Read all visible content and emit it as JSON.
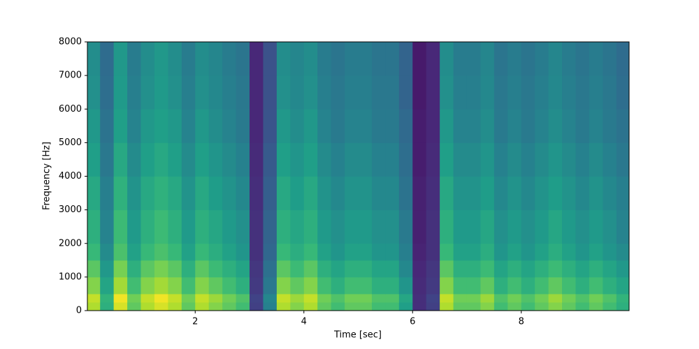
{
  "chart_data": {
    "type": "spectrogram",
    "xlabel": "Time [sec]",
    "ylabel": "Frequency [Hz]",
    "colormap": "viridis",
    "clim": [
      0,
      1
    ],
    "xlim": [
      0.016,
      9.984
    ],
    "xticks": [
      2,
      4,
      6,
      8
    ],
    "ylim": [
      0,
      8000
    ],
    "yticks": [
      0,
      1000,
      2000,
      3000,
      4000,
      5000,
      6000,
      7000,
      8000
    ],
    "xbins": [
      0,
      0.25,
      0.5,
      0.75,
      1,
      1.25,
      1.5,
      1.75,
      2,
      2.25,
      2.5,
      2.75,
      3,
      3.25,
      3.5,
      3.75,
      4,
      4.25,
      4.5,
      4.75,
      5,
      5.25,
      5.5,
      5.75,
      6,
      6.25,
      6.5,
      6.75,
      7,
      7.25,
      7.5,
      7.75,
      8,
      8.25,
      8.5,
      8.75,
      9,
      9.25,
      9.5,
      9.75,
      10
    ],
    "ybins": [
      0,
      250,
      500,
      1000,
      1500,
      2000,
      3000,
      4000,
      5000,
      6000,
      7000,
      8000
    ],
    "values": [
      [
        0.88,
        0.63,
        0.94,
        0.75,
        0.88,
        0.94,
        0.88,
        0.75,
        0.88,
        0.81,
        0.75,
        0.69,
        0.19,
        0.44,
        0.88,
        0.81,
        0.88,
        0.75,
        0.69,
        0.75,
        0.75,
        0.69,
        0.69,
        0.56,
        0.13,
        0.19,
        0.88,
        0.75,
        0.75,
        0.81,
        0.69,
        0.75,
        0.69,
        0.75,
        0.81,
        0.75,
        0.69,
        0.75,
        0.69,
        0.63
      ],
      [
        0.91,
        0.65,
        0.98,
        0.78,
        0.91,
        0.98,
        0.91,
        0.78,
        0.91,
        0.85,
        0.78,
        0.72,
        0.2,
        0.46,
        0.91,
        0.85,
        0.91,
        0.78,
        0.72,
        0.78,
        0.78,
        0.72,
        0.72,
        0.59,
        0.13,
        0.2,
        0.91,
        0.78,
        0.78,
        0.85,
        0.72,
        0.78,
        0.72,
        0.78,
        0.85,
        0.78,
        0.72,
        0.78,
        0.72,
        0.65
      ],
      [
        0.81,
        0.58,
        0.86,
        0.69,
        0.81,
        0.86,
        0.81,
        0.69,
        0.81,
        0.75,
        0.69,
        0.63,
        0.17,
        0.4,
        0.81,
        0.75,
        0.81,
        0.69,
        0.63,
        0.69,
        0.69,
        0.63,
        0.63,
        0.52,
        0.12,
        0.17,
        0.81,
        0.69,
        0.69,
        0.75,
        0.63,
        0.69,
        0.63,
        0.69,
        0.75,
        0.69,
        0.63,
        0.69,
        0.63,
        0.58
      ],
      [
        0.74,
        0.53,
        0.79,
        0.63,
        0.74,
        0.79,
        0.74,
        0.63,
        0.74,
        0.68,
        0.63,
        0.58,
        0.16,
        0.37,
        0.74,
        0.68,
        0.74,
        0.63,
        0.58,
        0.63,
        0.63,
        0.58,
        0.58,
        0.47,
        0.11,
        0.16,
        0.74,
        0.63,
        0.63,
        0.68,
        0.58,
        0.63,
        0.58,
        0.63,
        0.68,
        0.63,
        0.58,
        0.63,
        0.58,
        0.53
      ],
      [
        0.67,
        0.48,
        0.71,
        0.57,
        0.67,
        0.71,
        0.67,
        0.57,
        0.67,
        0.62,
        0.57,
        0.52,
        0.14,
        0.33,
        0.67,
        0.62,
        0.67,
        0.57,
        0.52,
        0.57,
        0.57,
        0.52,
        0.52,
        0.43,
        0.1,
        0.14,
        0.67,
        0.57,
        0.57,
        0.62,
        0.52,
        0.57,
        0.52,
        0.57,
        0.62,
        0.57,
        0.52,
        0.57,
        0.52,
        0.48
      ],
      [
        0.63,
        0.45,
        0.68,
        0.54,
        0.63,
        0.68,
        0.63,
        0.54,
        0.63,
        0.59,
        0.54,
        0.5,
        0.14,
        0.32,
        0.63,
        0.59,
        0.63,
        0.54,
        0.5,
        0.54,
        0.54,
        0.5,
        0.5,
        0.41,
        0.09,
        0.14,
        0.63,
        0.54,
        0.54,
        0.59,
        0.5,
        0.54,
        0.5,
        0.54,
        0.59,
        0.54,
        0.5,
        0.54,
        0.5,
        0.45
      ],
      [
        0.6,
        0.43,
        0.64,
        0.51,
        0.6,
        0.64,
        0.6,
        0.51,
        0.6,
        0.55,
        0.51,
        0.47,
        0.13,
        0.3,
        0.6,
        0.55,
        0.6,
        0.51,
        0.47,
        0.51,
        0.51,
        0.47,
        0.47,
        0.38,
        0.09,
        0.13,
        0.6,
        0.51,
        0.51,
        0.55,
        0.47,
        0.51,
        0.47,
        0.51,
        0.55,
        0.51,
        0.47,
        0.51,
        0.47,
        0.43
      ],
      [
        0.56,
        0.4,
        0.6,
        0.48,
        0.56,
        0.6,
        0.56,
        0.48,
        0.56,
        0.52,
        0.48,
        0.44,
        0.12,
        0.28,
        0.56,
        0.52,
        0.56,
        0.48,
        0.44,
        0.48,
        0.48,
        0.44,
        0.44,
        0.36,
        0.08,
        0.12,
        0.56,
        0.48,
        0.48,
        0.52,
        0.44,
        0.48,
        0.44,
        0.48,
        0.52,
        0.48,
        0.44,
        0.48,
        0.44,
        0.4
      ],
      [
        0.53,
        0.38,
        0.56,
        0.45,
        0.53,
        0.56,
        0.53,
        0.45,
        0.53,
        0.49,
        0.45,
        0.41,
        0.11,
        0.26,
        0.53,
        0.49,
        0.53,
        0.45,
        0.41,
        0.45,
        0.45,
        0.41,
        0.41,
        0.34,
        0.08,
        0.11,
        0.53,
        0.45,
        0.45,
        0.49,
        0.41,
        0.45,
        0.41,
        0.45,
        0.49,
        0.45,
        0.41,
        0.45,
        0.41,
        0.38
      ],
      [
        0.5,
        0.36,
        0.54,
        0.43,
        0.5,
        0.54,
        0.5,
        0.43,
        0.5,
        0.47,
        0.43,
        0.4,
        0.11,
        0.25,
        0.5,
        0.47,
        0.5,
        0.43,
        0.4,
        0.43,
        0.43,
        0.4,
        0.4,
        0.32,
        0.07,
        0.11,
        0.5,
        0.43,
        0.43,
        0.47,
        0.4,
        0.43,
        0.4,
        0.43,
        0.47,
        0.43,
        0.4,
        0.43,
        0.4,
        0.36
      ],
      [
        0.49,
        0.35,
        0.53,
        0.42,
        0.49,
        0.53,
        0.49,
        0.42,
        0.49,
        0.46,
        0.42,
        0.39,
        0.11,
        0.25,
        0.49,
        0.46,
        0.49,
        0.42,
        0.39,
        0.42,
        0.42,
        0.39,
        0.39,
        0.32,
        0.07,
        0.11,
        0.49,
        0.42,
        0.42,
        0.46,
        0.39,
        0.42,
        0.39,
        0.42,
        0.46,
        0.42,
        0.39,
        0.42,
        0.39,
        0.35
      ]
    ]
  }
}
